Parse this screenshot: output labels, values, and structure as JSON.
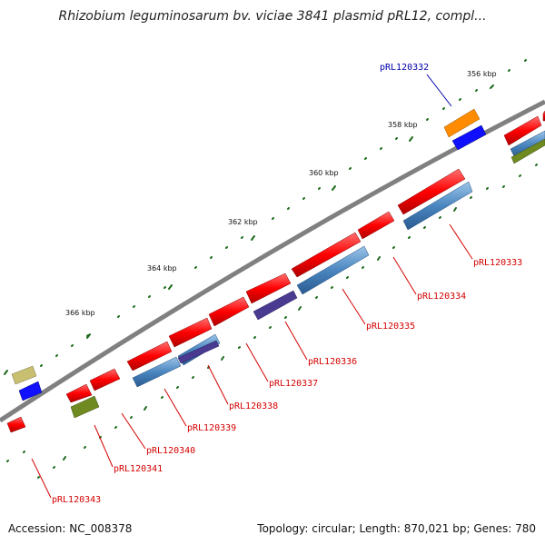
{
  "title": "Rhizobium leguminosarum bv. viciae 3841 plasmid pRL12, compl...",
  "footer": {
    "accession": "Accession: NC_008378",
    "summary": "Topology: circular; Length: 870,021 bp; Genes: 780"
  },
  "scale_labels": [
    "356 kbp",
    "358 kbp",
    "360 kbp",
    "362 kbp",
    "364 kbp",
    "366 kbp"
  ],
  "gene_labels": [
    {
      "id": "pRL120332",
      "highlight": true
    },
    {
      "id": "pRL120333",
      "highlight": false
    },
    {
      "id": "pRL120334",
      "highlight": false
    },
    {
      "id": "pRL120335",
      "highlight": false
    },
    {
      "id": "pRL120336",
      "highlight": false
    },
    {
      "id": "pRL120337",
      "highlight": false
    },
    {
      "id": "pRL120338",
      "highlight": false
    },
    {
      "id": "pRL120339",
      "highlight": false
    },
    {
      "id": "pRL120340",
      "highlight": false
    },
    {
      "id": "pRL120341",
      "highlight": false
    },
    {
      "id": "pRL120343",
      "highlight": false
    }
  ],
  "colors": {
    "gene": "#ff0000",
    "cds": "#4a86c0",
    "highlight_gene": "#ff8c00",
    "highlight_cds": "#1010ff",
    "misc_olive": "#6f8a20",
    "misc_khaki": "#c8c070",
    "misc_purple": "#4a3a90",
    "backbone": "#808080",
    "tick": "#1a6a1a",
    "highlight_label": "#0000aa",
    "label": "#d40000"
  }
}
